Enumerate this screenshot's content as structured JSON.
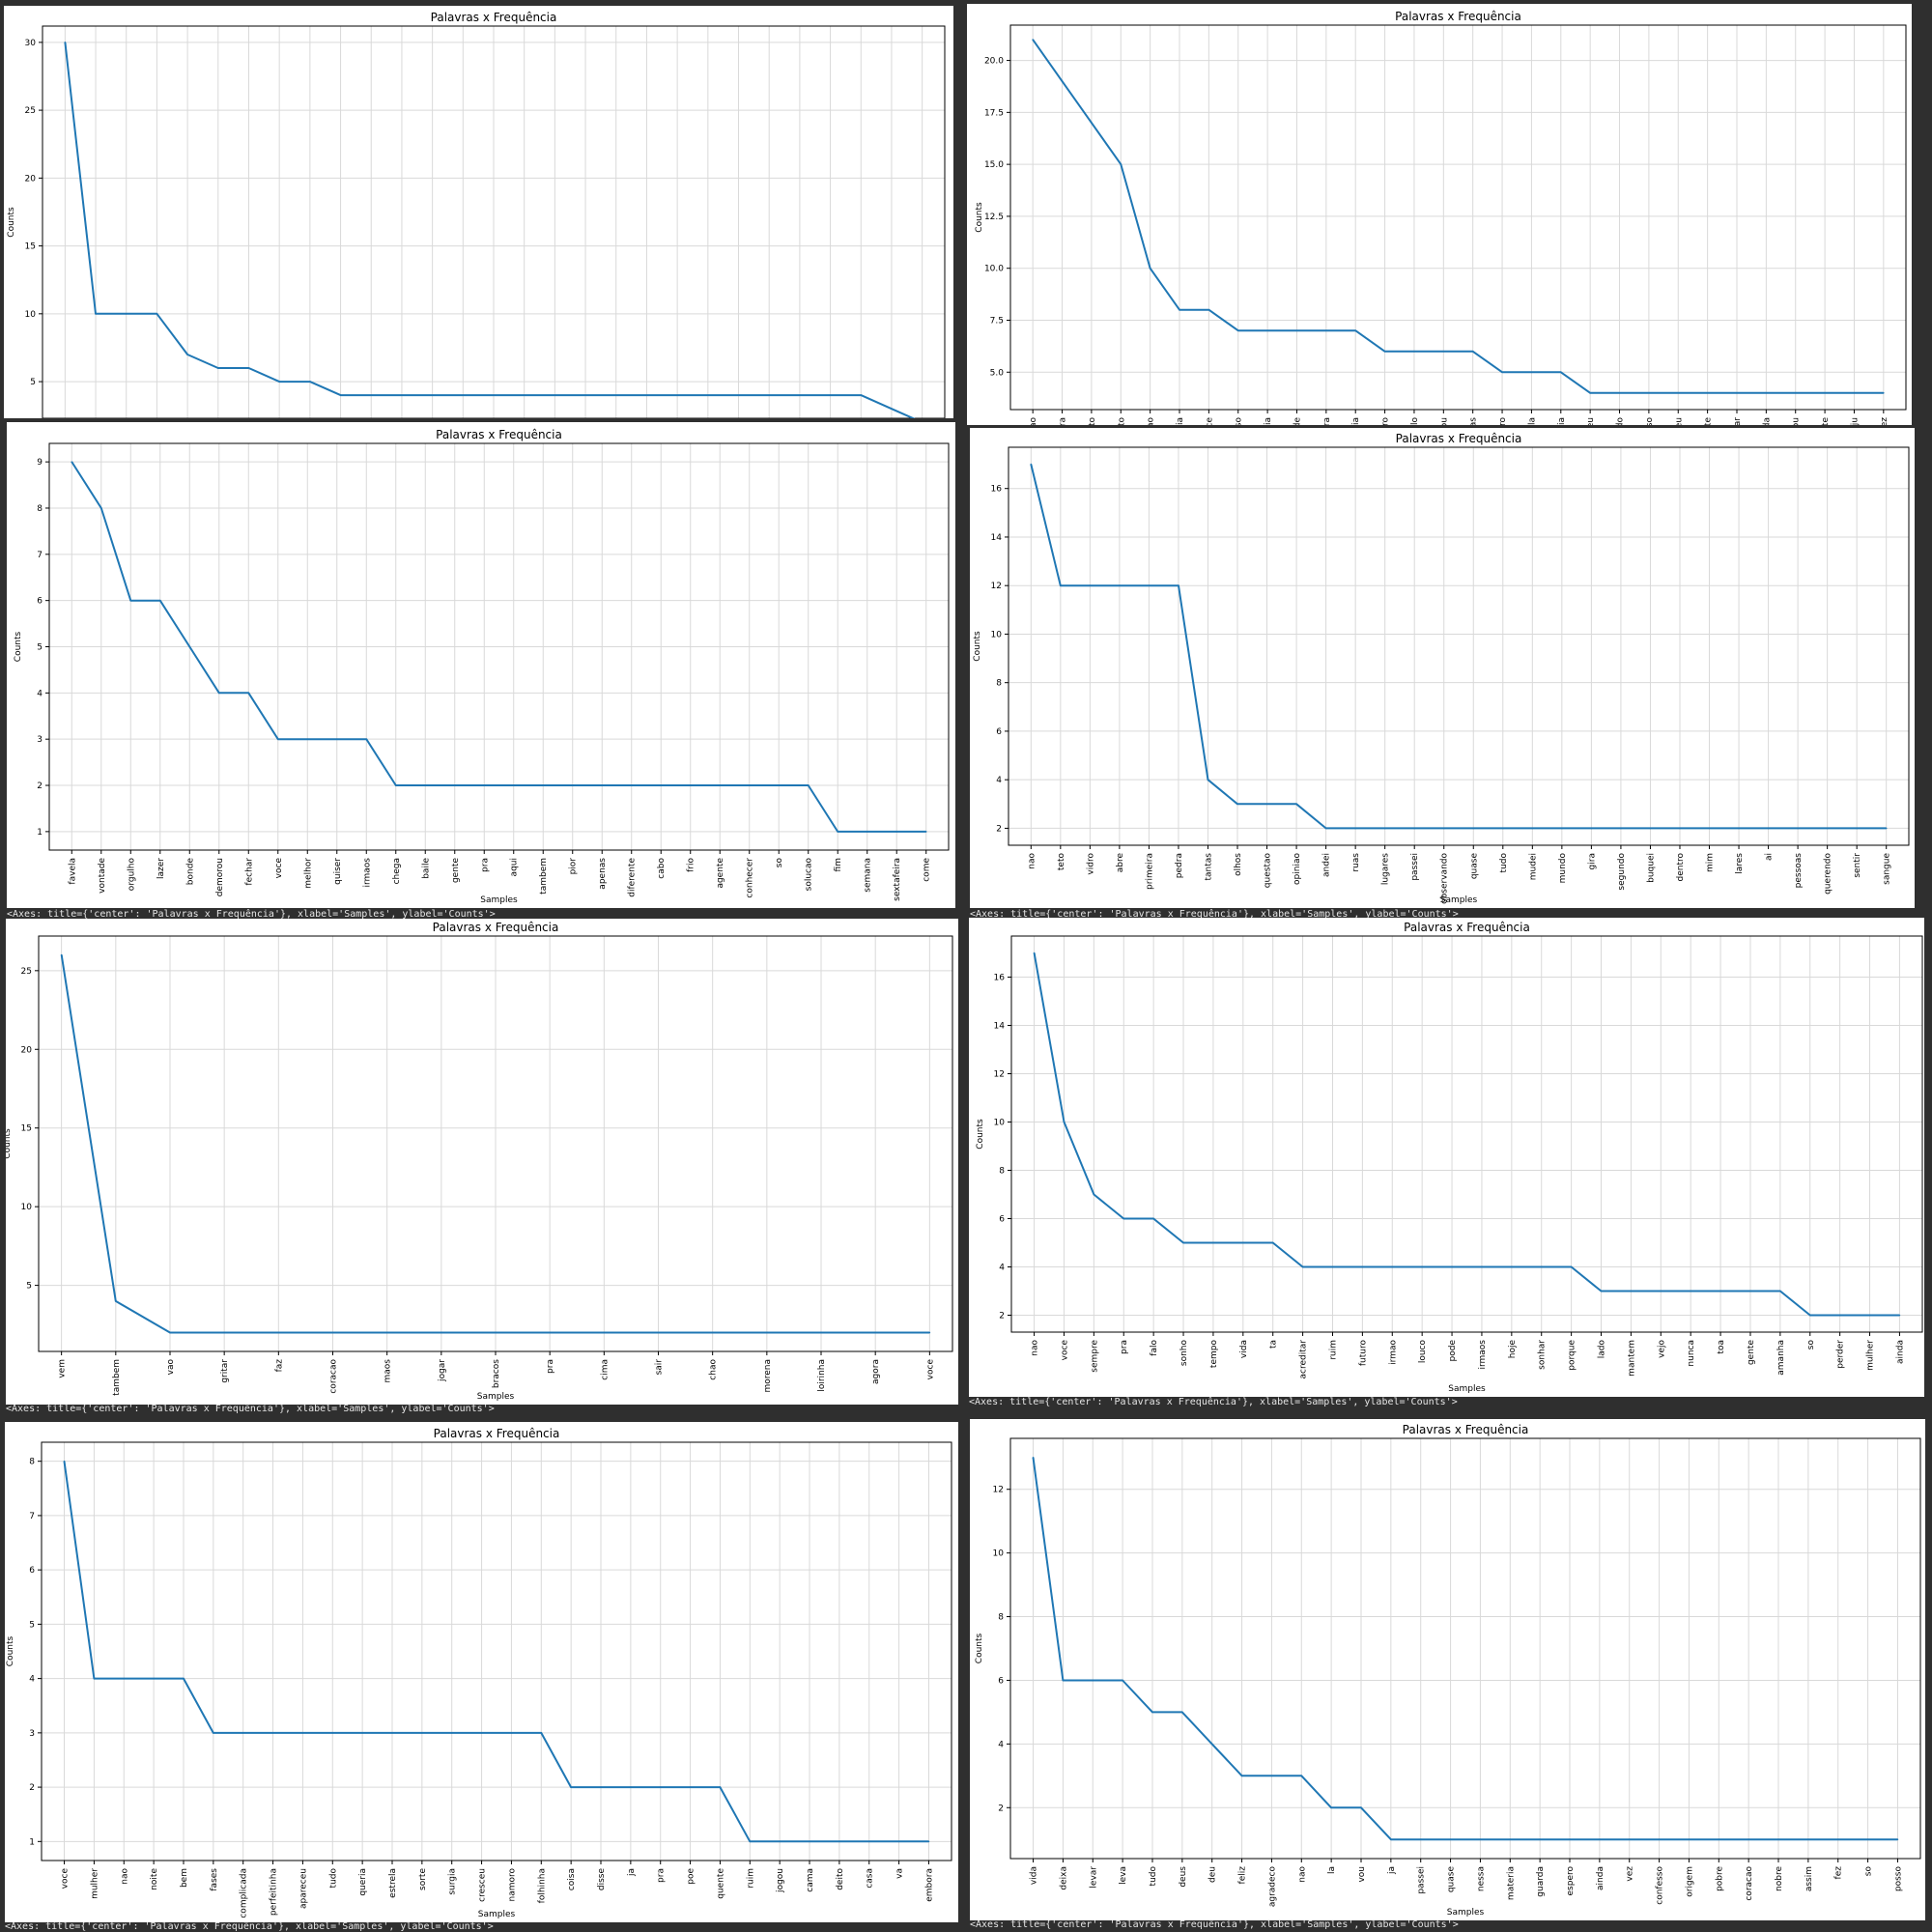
{
  "charts": [
    {
      "type": "line",
      "title": "Palavras x Frequência",
      "ylabel": "Counts",
      "xlabel": "",
      "ylim": [
        2.3,
        31.2
      ],
      "yticks": [
        5,
        10,
        15,
        20,
        25,
        30
      ],
      "ytick_labels": [
        "5",
        "10",
        "15",
        "20",
        "25",
        "30"
      ],
      "categories": [
        "",
        "",
        "",
        "",
        "",
        "",
        "",
        "",
        "",
        "",
        "",
        "",
        "",
        "",
        "",
        "",
        "",
        "",
        "",
        "",
        "",
        "",
        "",
        "",
        "",
        "",
        "",
        "",
        ""
      ],
      "values": [
        30,
        10,
        10,
        10,
        7,
        6,
        6,
        5,
        5,
        4,
        4,
        4,
        4,
        4,
        4,
        4,
        4,
        4,
        4,
        4,
        4,
        4,
        4,
        4,
        4,
        4,
        4,
        3,
        2
      ],
      "repr": ""
    },
    {
      "type": "line",
      "title": "Palavras x Frequência",
      "ylabel": "Counts",
      "xlabel": "",
      "ylim": [
        3.2,
        21.7
      ],
      "yticks": [
        5.0,
        7.5,
        10.0,
        12.5,
        15.0,
        17.5,
        20.0
      ],
      "ytick_labels": [
        "5.0",
        "7.5",
        "10.0",
        "12.5",
        "15.0",
        "17.5",
        "20.0"
      ],
      "categories": [
        "ao",
        "ra",
        "nto",
        "ato",
        "ao",
        "ia",
        "ce",
        "so",
        "ria",
        "de",
        "ra",
        "cia",
        "ro",
        "lo",
        "ou",
        "as",
        "ro",
        "la",
        "cia",
        "eu",
        "do",
        "so",
        "eu",
        "te",
        "ar",
        "da",
        "ou",
        "te",
        "ju",
        "ez"
      ],
      "values": [
        21,
        19,
        17,
        15,
        10,
        8,
        8,
        7,
        7,
        7,
        7,
        7,
        6,
        6,
        6,
        6,
        5,
        5,
        5,
        4,
        4,
        4,
        4,
        4,
        4,
        4,
        4,
        4,
        4,
        4
      ],
      "repr": ""
    },
    {
      "type": "line",
      "title": "Palavras x Frequência",
      "ylabel": "Counts",
      "xlabel": "Samples",
      "ylim": [
        0.6,
        9.4
      ],
      "yticks": [
        1,
        2,
        3,
        4,
        5,
        6,
        7,
        8,
        9
      ],
      "ytick_labels": [
        "1",
        "2",
        "3",
        "4",
        "5",
        "6",
        "7",
        "8",
        "9"
      ],
      "categories": [
        "favela",
        "vontade",
        "orgulho",
        "lazer",
        "bonde",
        "demorou",
        "fechar",
        "voce",
        "melhor",
        "quiser",
        "irmaos",
        "chega",
        "baile",
        "gente",
        "pra",
        "aqui",
        "tambem",
        "pior",
        "apenas",
        "diferente",
        "cabo",
        "frio",
        "agente",
        "conhecer",
        "so",
        "solucao",
        "fim",
        "semana",
        "sextafeira",
        "come"
      ],
      "values": [
        9,
        8,
        6,
        6,
        5,
        4,
        4,
        3,
        3,
        3,
        3,
        2,
        2,
        2,
        2,
        2,
        2,
        2,
        2,
        2,
        2,
        2,
        2,
        2,
        2,
        2,
        1,
        1,
        1,
        1
      ],
      "repr": "<Axes: title={'center': 'Palavras x Frequência'}, xlabel='Samples', ylabel='Counts'>"
    },
    {
      "type": "line",
      "title": "Palavras x Frequência",
      "ylabel": "Counts",
      "xlabel": "Samples",
      "ylim": [
        1.3,
        17.7
      ],
      "yticks": [
        2,
        4,
        6,
        8,
        10,
        12,
        14,
        16
      ],
      "ytick_labels": [
        "2",
        "4",
        "6",
        "8",
        "10",
        "12",
        "14",
        "16"
      ],
      "categories": [
        "nao",
        "teto",
        "vidro",
        "abre",
        "primeira",
        "pedra",
        "tantas",
        "olhos",
        "questao",
        "opiniao",
        "andei",
        "ruas",
        "lugares",
        "passei",
        "observando",
        "quase",
        "tudo",
        "mudei",
        "mundo",
        "gira",
        "segundo",
        "buquei",
        "dentro",
        "mim",
        "lares",
        "ai",
        "pessoas",
        "querendo",
        "sentir",
        "sangue"
      ],
      "values": [
        17,
        12,
        12,
        12,
        12,
        12,
        4,
        3,
        3,
        3,
        2,
        2,
        2,
        2,
        2,
        2,
        2,
        2,
        2,
        2,
        2,
        2,
        2,
        2,
        2,
        2,
        2,
        2,
        2,
        2
      ],
      "repr": "<Axes: title={'center': 'Palavras x Frequência'}, xlabel='Samples', ylabel='Counts'>"
    },
    {
      "type": "line",
      "title": "Palavras x Frequência",
      "ylabel": "Counts",
      "xlabel": "Samples",
      "ylim": [
        0.8,
        27.2
      ],
      "yticks": [
        5,
        10,
        15,
        20,
        25
      ],
      "ytick_labels": [
        "5",
        "10",
        "15",
        "20",
        "25"
      ],
      "categories": [
        "vem",
        "tambem",
        "vao",
        "gritar",
        "faz",
        "coracao",
        "maos",
        "jogar",
        "bracos",
        "pra",
        "cima",
        "sair",
        "chao",
        "morena",
        "loirinha",
        "agora",
        "voce"
      ],
      "values": [
        26,
        4,
        2,
        2,
        2,
        2,
        2,
        2,
        2,
        2,
        2,
        2,
        2,
        2,
        2,
        2,
        2
      ],
      "repr": "<Axes: title={'center': 'Palavras x Frequência'}, xlabel='Samples', ylabel='Counts'>"
    },
    {
      "type": "line",
      "title": "Palavras x Frequência",
      "ylabel": "Counts",
      "xlabel": "Samples",
      "ylim": [
        1.3,
        17.7
      ],
      "yticks": [
        2,
        4,
        6,
        8,
        10,
        12,
        14,
        16
      ],
      "ytick_labels": [
        "2",
        "4",
        "6",
        "8",
        "10",
        "12",
        "14",
        "16"
      ],
      "categories": [
        "nao",
        "voce",
        "sempre",
        "pra",
        "falo",
        "sonho",
        "tempo",
        "vida",
        "ta",
        "acreditar",
        "ruim",
        "futuro",
        "irmao",
        "louco",
        "pode",
        "irmaos",
        "hoje",
        "sonhar",
        "porque",
        "lado",
        "mantem",
        "vejo",
        "nunca",
        "toa",
        "gente",
        "amanha",
        "so",
        "perder",
        "mulher",
        "ainda"
      ],
      "values": [
        17,
        10,
        7,
        6,
        6,
        5,
        5,
        5,
        5,
        4,
        4,
        4,
        4,
        4,
        4,
        4,
        4,
        4,
        4,
        3,
        3,
        3,
        3,
        3,
        3,
        3,
        2,
        2,
        2,
        2
      ],
      "repr": "<Axes: title={'center': 'Palavras x Frequência'}, xlabel='Samples', ylabel='Counts'>"
    },
    {
      "type": "line",
      "title": "Palavras x Frequência",
      "ylabel": "Counts",
      "xlabel": "Samples",
      "ylim": [
        0.65,
        8.35
      ],
      "yticks": [
        1,
        2,
        3,
        4,
        5,
        6,
        7,
        8
      ],
      "ytick_labels": [
        "1",
        "2",
        "3",
        "4",
        "5",
        "6",
        "7",
        "8"
      ],
      "categories": [
        "voce",
        "mulher",
        "nao",
        "noite",
        "bem",
        "fases",
        "complicada",
        "perfeitinha",
        "apareceu",
        "tudo",
        "queria",
        "estrela",
        "sorte",
        "surgia",
        "cresceu",
        "namoro",
        "folhinha",
        "coisa",
        "disse",
        "ja",
        "pra",
        "poe",
        "quente",
        "ruim",
        "jogou",
        "cama",
        "deito",
        "casa",
        "va",
        "embora"
      ],
      "values": [
        8,
        4,
        4,
        4,
        4,
        3,
        3,
        3,
        3,
        3,
        3,
        3,
        3,
        3,
        3,
        3,
        3,
        2,
        2,
        2,
        2,
        2,
        2,
        1,
        1,
        1,
        1,
        1,
        1,
        1
      ],
      "repr": "<Axes: title={'center': 'Palavras x Frequência'}, xlabel='Samples', ylabel='Counts'>"
    },
    {
      "type": "line",
      "title": "Palavras x Frequência",
      "ylabel": "Counts",
      "xlabel": "Samples",
      "ylim": [
        0.4,
        13.6
      ],
      "yticks": [
        2,
        4,
        6,
        8,
        10,
        12
      ],
      "ytick_labels": [
        "2",
        "4",
        "6",
        "8",
        "10",
        "12"
      ],
      "categories": [
        "vida",
        "deixa",
        "levar",
        "leva",
        "tudo",
        "deus",
        "deu",
        "feliz",
        "agradeco",
        "nao",
        "la",
        "vou",
        "ja",
        "passei",
        "quase",
        "nessa",
        "materia",
        "guarda",
        "espero",
        "ainda",
        "vez",
        "confesso",
        "origem",
        "pobre",
        "coracao",
        "nobre",
        "assim",
        "fez",
        "so",
        "posso"
      ],
      "values": [
        13,
        6,
        6,
        6,
        5,
        5,
        4,
        3,
        3,
        3,
        2,
        2,
        1,
        1,
        1,
        1,
        1,
        1,
        1,
        1,
        1,
        1,
        1,
        1,
        1,
        1,
        1,
        1,
        1,
        1
      ],
      "repr": "<Axes: title={'center': 'Palavras x Frequência'}, xlabel='Samples', ylabel='Counts'>"
    }
  ],
  "style": {
    "line_color": "#1f77b4",
    "grid_color": "#d9d9d9",
    "background": "#2f2f2f"
  }
}
